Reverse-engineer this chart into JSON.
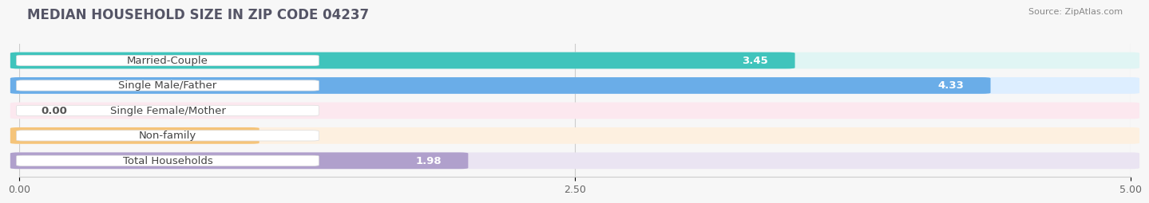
{
  "title": "MEDIAN HOUSEHOLD SIZE IN ZIP CODE 04237",
  "source": "Source: ZipAtlas.com",
  "categories": [
    "Married-Couple",
    "Single Male/Father",
    "Single Female/Mother",
    "Non-family",
    "Total Households"
  ],
  "values": [
    3.45,
    4.33,
    0.0,
    1.04,
    1.98
  ],
  "bar_colors": [
    "#40c4bc",
    "#6aade8",
    "#f28faa",
    "#f5c47a",
    "#b0a0cc"
  ],
  "bar_bg_colors": [
    "#e0f5f4",
    "#ddeeff",
    "#fce8ef",
    "#fdf0e0",
    "#eae4f2"
  ],
  "label_bg_color": "#ffffff",
  "xlim": [
    0,
    5.0
  ],
  "xtick_labels": [
    "0.00",
    "2.50",
    "5.00"
  ],
  "xtick_values": [
    0.0,
    2.5,
    5.0
  ],
  "value_color_inside": "white",
  "value_color_outside": "#555555",
  "label_fontsize": 9.5,
  "value_fontsize": 9.5,
  "title_fontsize": 12,
  "background_color": "#f7f7f7"
}
